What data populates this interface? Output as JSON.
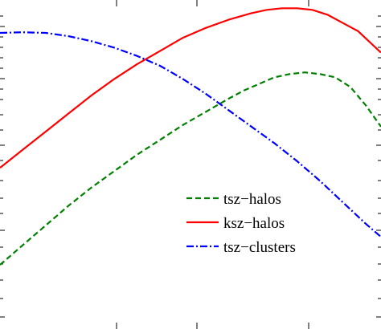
{
  "chart_data": {
    "type": "line",
    "title": "",
    "xlabel": "",
    "ylabel": "",
    "xlim": [
      0,
      100
    ],
    "ylim": [
      0,
      100
    ],
    "legend_placement": "lower-right",
    "grid": false,
    "series": [
      {
        "name": "tsz−halos",
        "color": "#008000",
        "style": "dashed",
        "x": [
          0,
          6,
          12,
          18,
          24,
          30,
          36,
          42,
          48,
          54,
          60,
          64,
          68,
          72,
          76,
          80,
          84,
          88,
          92,
          96,
          100
        ],
        "y": [
          19.5,
          25.5,
          31.5,
          37.5,
          43.0,
          48.0,
          53.0,
          57.5,
          62.0,
          66.0,
          70.0,
          72.5,
          74.5,
          76.5,
          77.5,
          78.0,
          77.5,
          76.5,
          73.5,
          68.0,
          61.5
        ]
      },
      {
        "name": "ksz−halos",
        "color": "#ff0000",
        "style": "solid",
        "x": [
          0,
          6,
          12,
          18,
          24,
          30,
          36,
          42,
          48,
          54,
          60,
          66,
          70,
          74,
          78,
          82,
          86,
          90,
          94,
          100
        ],
        "y": [
          49.0,
          54.5,
          60.0,
          65.5,
          71.0,
          76.0,
          80.5,
          84.5,
          88.5,
          91.5,
          94.0,
          96.0,
          97.0,
          97.5,
          97.5,
          97.0,
          95.5,
          93.0,
          90.5,
          84.0
        ]
      },
      {
        "name": "tsz−clusters",
        "color": "#0000ff",
        "style": "dashdot",
        "x": [
          0,
          6,
          12,
          18,
          24,
          30,
          36,
          42,
          48,
          54,
          60,
          66,
          72,
          78,
          84,
          90,
          96,
          100
        ],
        "y": [
          90.0,
          90.2,
          90.0,
          89.0,
          87.5,
          85.5,
          83.0,
          80.0,
          76.0,
          71.5,
          66.5,
          61.5,
          56.5,
          51.0,
          45.0,
          38.5,
          32.0,
          28.0
        ]
      }
    ]
  }
}
